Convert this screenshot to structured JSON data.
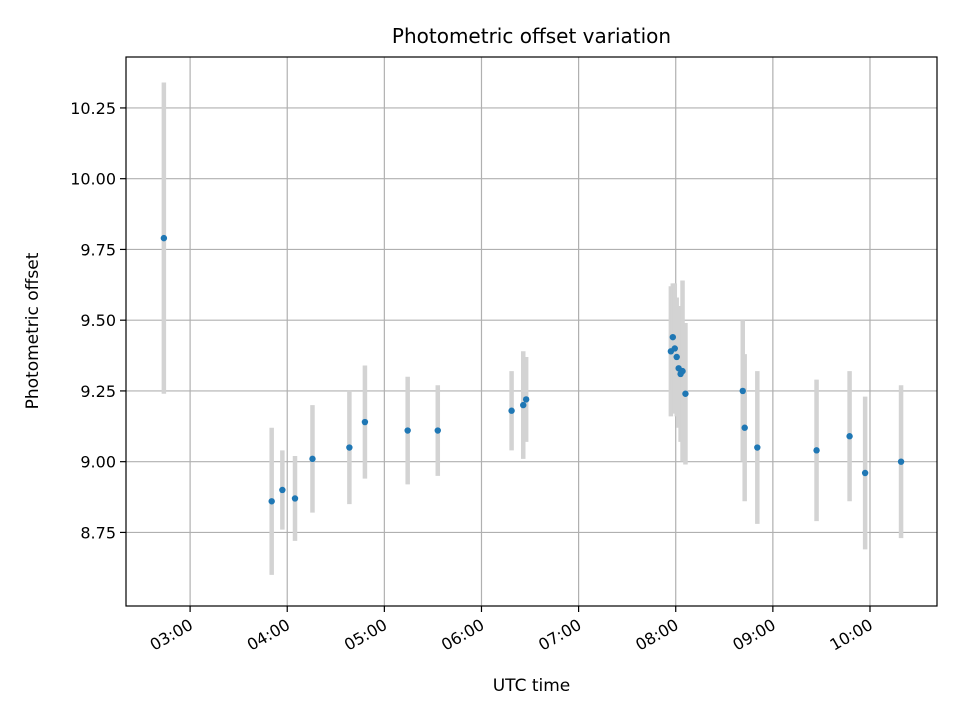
{
  "chart_data": {
    "type": "scatter",
    "title": "Photometric offset variation",
    "xlabel": "UTC time",
    "ylabel": "Photometric offset",
    "x_unit": "hours UTC",
    "xlim": [
      2.34,
      10.69
    ],
    "ylim": [
      8.49,
      10.43
    ],
    "grid": true,
    "x_ticks": [
      {
        "value": 3,
        "label": "03:00"
      },
      {
        "value": 4,
        "label": "04:00"
      },
      {
        "value": 5,
        "label": "05:00"
      },
      {
        "value": 6,
        "label": "06:00"
      },
      {
        "value": 7,
        "label": "07:00"
      },
      {
        "value": 8,
        "label": "08:00"
      },
      {
        "value": 9,
        "label": "09:00"
      },
      {
        "value": 10,
        "label": "10:00"
      }
    ],
    "y_ticks": [
      {
        "value": 8.75,
        "label": "8.75"
      },
      {
        "value": 9.0,
        "label": "9.00"
      },
      {
        "value": 9.25,
        "label": "9.25"
      },
      {
        "value": 9.5,
        "label": "9.50"
      },
      {
        "value": 9.75,
        "label": "9.75"
      },
      {
        "value": 10.0,
        "label": "10.00"
      },
      {
        "value": 10.25,
        "label": "10.25"
      }
    ],
    "point_color": "#1f77b4",
    "errorbar_color": "#d3d3d3",
    "points": [
      {
        "x": 2.73,
        "y": 9.79,
        "err": 0.55
      },
      {
        "x": 3.84,
        "y": 8.86,
        "err": 0.26
      },
      {
        "x": 3.95,
        "y": 8.9,
        "err": 0.14
      },
      {
        "x": 4.08,
        "y": 8.87,
        "err": 0.15
      },
      {
        "x": 4.26,
        "y": 9.01,
        "err": 0.19
      },
      {
        "x": 4.64,
        "y": 9.05,
        "err": 0.2
      },
      {
        "x": 4.8,
        "y": 9.14,
        "err": 0.2
      },
      {
        "x": 5.24,
        "y": 9.11,
        "err": 0.19
      },
      {
        "x": 5.55,
        "y": 9.11,
        "err": 0.16
      },
      {
        "x": 6.31,
        "y": 9.18,
        "err": 0.14
      },
      {
        "x": 6.43,
        "y": 9.2,
        "err": 0.19
      },
      {
        "x": 6.46,
        "y": 9.22,
        "err": 0.15
      },
      {
        "x": 7.95,
        "y": 9.39,
        "err": 0.23
      },
      {
        "x": 7.97,
        "y": 9.44,
        "err": 0.19
      },
      {
        "x": 7.99,
        "y": 9.4,
        "err": 0.23
      },
      {
        "x": 8.01,
        "y": 9.37,
        "err": 0.21
      },
      {
        "x": 8.03,
        "y": 9.33,
        "err": 0.21
      },
      {
        "x": 8.05,
        "y": 9.31,
        "err": 0.24
      },
      {
        "x": 8.07,
        "y": 9.32,
        "err": 0.32
      },
      {
        "x": 8.1,
        "y": 9.24,
        "err": 0.25
      },
      {
        "x": 8.69,
        "y": 9.25,
        "err": 0.25
      },
      {
        "x": 8.71,
        "y": 9.12,
        "err": 0.26
      },
      {
        "x": 8.84,
        "y": 9.05,
        "err": 0.27
      },
      {
        "x": 9.45,
        "y": 9.04,
        "err": 0.25
      },
      {
        "x": 9.79,
        "y": 9.09,
        "err": 0.23
      },
      {
        "x": 9.95,
        "y": 8.96,
        "err": 0.27
      },
      {
        "x": 10.32,
        "y": 9.0,
        "err": 0.27
      }
    ]
  }
}
